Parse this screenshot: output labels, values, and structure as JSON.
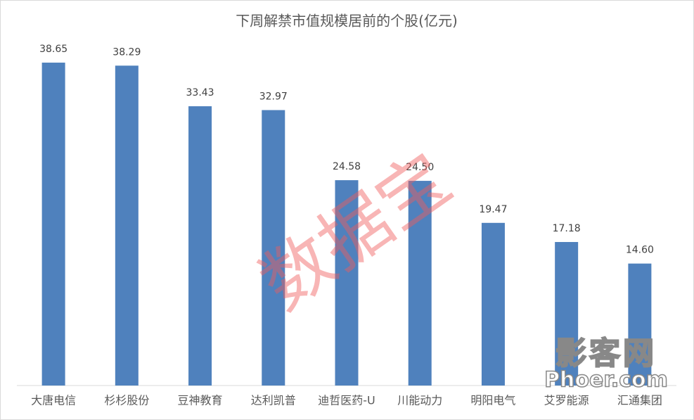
{
  "chart_data": {
    "type": "bar",
    "title": "下周解禁市值规模居前的个股(亿元)",
    "categories": [
      "大唐电信",
      "杉杉股份",
      "豆神教育",
      "达利凯普",
      "迪哲医药-U",
      "川能动力",
      "明阳电气",
      "艾罗能源",
      "汇通集团"
    ],
    "values": [
      38.65,
      38.29,
      33.43,
      32.97,
      24.58,
      24.5,
      19.47,
      17.18,
      14.6
    ],
    "value_labels": [
      "38.65",
      "38.29",
      "33.43",
      "32.97",
      "24.58",
      "24.50",
      "19.47",
      "17.18",
      "14.60"
    ],
    "color": "#4f81bd",
    "ylim": [
      0,
      40
    ],
    "grid": false,
    "annotations": [
      "数据宝",
      "影客网",
      "Phoer.com"
    ]
  }
}
